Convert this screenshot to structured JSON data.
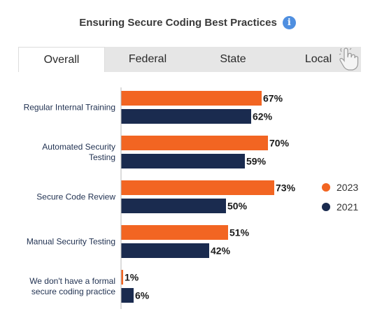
{
  "title": "Ensuring Secure Coding Best Practices",
  "tabs": [
    {
      "label": "Overall",
      "active": true
    },
    {
      "label": "Federal",
      "active": false
    },
    {
      "label": "State",
      "active": false
    },
    {
      "label": "Local",
      "active": false
    }
  ],
  "icons": {
    "info": "info-icon",
    "hand": "hand-pointer-icon"
  },
  "colors": {
    "series_2023": "#f26522",
    "series_2021": "#1a2b4f"
  },
  "chart_data": {
    "type": "bar",
    "orientation": "horizontal",
    "categories": [
      [
        "Regular Internal Training"
      ],
      [
        "Automated Security",
        "Testing"
      ],
      [
        "Secure Code Review"
      ],
      [
        "Manual Security Testing"
      ],
      [
        "We don't have a formal",
        "secure coding practice"
      ]
    ],
    "series": [
      {
        "name": "2023",
        "values": [
          67,
          70,
          73,
          51,
          1
        ],
        "labels": [
          "67%",
          "70%",
          "73%",
          "51%",
          "1%"
        ]
      },
      {
        "name": "2021",
        "values": [
          62,
          59,
          50,
          42,
          6
        ],
        "labels": [
          "62%",
          "59%",
          "50%",
          "42%",
          "6%"
        ]
      }
    ],
    "xlim": [
      0,
      100
    ],
    "grid": false,
    "legend_position": "right"
  }
}
